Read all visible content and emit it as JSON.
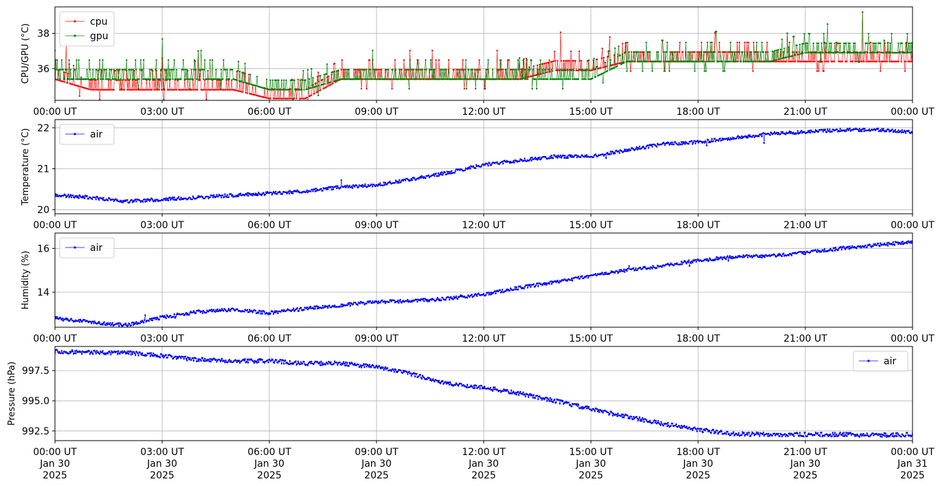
{
  "chart_data": [
    {
      "type": "line",
      "ylabel": "CPU/GPU (°C)",
      "ylim": [
        34.2,
        39.5
      ],
      "yticks": [
        36,
        38
      ],
      "grid": true,
      "legend": "top-left",
      "x_ticks": [
        "00:00 UT",
        "03:00 UT",
        "06:00 UT",
        "09:00 UT",
        "12:00 UT",
        "15:00 UT",
        "18:00 UT",
        "21:00 UT",
        "00:00 UT"
      ],
      "x_range_hours": [
        0,
        24
      ],
      "series": [
        {
          "name": "cpu",
          "color": "#ff0000",
          "points": [
            [
              0,
              35.4
            ],
            [
              1,
              34.8
            ],
            [
              2,
              34.8
            ],
            [
              3,
              34.8
            ],
            [
              4,
              34.8
            ],
            [
              5,
              34.8
            ],
            [
              6,
              34.3
            ],
            [
              7,
              34.3
            ],
            [
              8,
              35.4
            ],
            [
              9,
              35.4
            ],
            [
              10,
              35.4
            ],
            [
              11,
              35.4
            ],
            [
              12,
              35.4
            ],
            [
              13,
              35.4
            ],
            [
              14,
              35.9
            ],
            [
              15,
              35.9
            ],
            [
              16,
              36.4
            ],
            [
              17,
              36.4
            ],
            [
              18,
              36.4
            ],
            [
              19,
              36.4
            ],
            [
              20,
              36.4
            ],
            [
              21,
              36.4
            ],
            [
              22,
              36.4
            ],
            [
              23,
              36.4
            ],
            [
              24,
              36.4
            ]
          ]
        },
        {
          "name": "gpu",
          "color": "#008000",
          "points": [
            [
              0,
              35.4
            ],
            [
              1,
              35.4
            ],
            [
              2,
              35.4
            ],
            [
              3,
              35.4
            ],
            [
              4,
              35.4
            ],
            [
              5,
              35.4
            ],
            [
              6,
              34.8
            ],
            [
              7,
              34.8
            ],
            [
              8,
              35.4
            ],
            [
              9,
              35.4
            ],
            [
              10,
              35.4
            ],
            [
              11,
              35.4
            ],
            [
              12,
              35.4
            ],
            [
              13,
              35.4
            ],
            [
              14,
              35.4
            ],
            [
              15,
              35.4
            ],
            [
              16,
              36.4
            ],
            [
              17,
              36.4
            ],
            [
              18,
              36.4
            ],
            [
              19,
              36.4
            ],
            [
              20,
              36.4
            ],
            [
              21,
              36.9
            ],
            [
              22,
              36.9
            ],
            [
              23,
              36.9
            ],
            [
              24,
              36.9
            ]
          ]
        }
      ],
      "spike_maxima": [
        [
          3,
          36.6
        ],
        [
          4,
          37.0
        ],
        [
          13,
          36.6
        ],
        [
          15.5,
          37.0
        ],
        [
          17,
          37.6
        ],
        [
          18.5,
          38.1
        ],
        [
          20.5,
          38.0
        ],
        [
          22.6,
          39.2
        ],
        [
          23.2,
          37.6
        ]
      ]
    },
    {
      "type": "line",
      "ylabel": "Temperature (°C)",
      "ylim": [
        19.9,
        22.2
      ],
      "yticks": [
        20,
        21,
        22
      ],
      "grid": true,
      "legend": "top-left",
      "x_ticks": [
        "00:00 UT",
        "03:00 UT",
        "06:00 UT",
        "09:00 UT",
        "12:00 UT",
        "15:00 UT",
        "18:00 UT",
        "21:00 UT",
        "00:00 UT"
      ],
      "x_range_hours": [
        0,
        24
      ],
      "series": [
        {
          "name": "air",
          "color": "#0000ff",
          "points": [
            [
              0,
              20.35
            ],
            [
              1,
              20.3
            ],
            [
              2,
              20.2
            ],
            [
              3,
              20.25
            ],
            [
              4,
              20.3
            ],
            [
              5,
              20.35
            ],
            [
              6,
              20.4
            ],
            [
              7,
              20.45
            ],
            [
              8,
              20.55
            ],
            [
              9,
              20.6
            ],
            [
              10,
              20.75
            ],
            [
              11,
              20.9
            ],
            [
              11.5,
              21.0
            ],
            [
              12,
              21.1
            ],
            [
              13,
              21.2
            ],
            [
              14,
              21.3
            ],
            [
              15,
              21.3
            ],
            [
              16,
              21.45
            ],
            [
              17,
              21.6
            ],
            [
              18,
              21.65
            ],
            [
              19,
              21.75
            ],
            [
              20,
              21.85
            ],
            [
              21,
              21.9
            ],
            [
              22,
              21.95
            ],
            [
              23,
              21.95
            ],
            [
              24,
              21.9
            ]
          ]
        }
      ]
    },
    {
      "type": "line",
      "ylabel": "Humidity (%)",
      "ylim": [
        12.4,
        16.7
      ],
      "yticks": [
        14,
        16
      ],
      "grid": true,
      "legend": "top-left",
      "x_ticks": [
        "00:00 UT",
        "03:00 UT",
        "06:00 UT",
        "09:00 UT",
        "12:00 UT",
        "15:00 UT",
        "18:00 UT",
        "21:00 UT",
        "00:00 UT"
      ],
      "x_range_hours": [
        0,
        24
      ],
      "series": [
        {
          "name": "air",
          "color": "#0000ff",
          "points": [
            [
              0,
              12.8
            ],
            [
              1,
              12.65
            ],
            [
              1.5,
              12.55
            ],
            [
              2,
              12.5
            ],
            [
              3,
              12.85
            ],
            [
              4,
              13.1
            ],
            [
              5,
              13.2
            ],
            [
              6,
              13.05
            ],
            [
              7,
              13.25
            ],
            [
              8,
              13.4
            ],
            [
              9,
              13.55
            ],
            [
              10,
              13.6
            ],
            [
              11,
              13.7
            ],
            [
              12,
              13.9
            ],
            [
              13,
              14.2
            ],
            [
              14,
              14.45
            ],
            [
              15,
              14.75
            ],
            [
              16,
              15.0
            ],
            [
              17,
              15.2
            ],
            [
              18,
              15.45
            ],
            [
              19,
              15.6
            ],
            [
              20,
              15.65
            ],
            [
              21,
              15.8
            ],
            [
              22,
              16.0
            ],
            [
              23,
              16.15
            ],
            [
              24,
              16.3
            ]
          ]
        }
      ]
    },
    {
      "type": "line",
      "ylabel": "Pressure (hPa)",
      "ylim": [
        991.7,
        999.5
      ],
      "yticks": [
        992.5,
        995.0,
        997.5
      ],
      "grid": true,
      "legend": "top-right",
      "x_ticks": [
        "00:00 UT\nJan 30\n2025",
        "03:00 UT\nJan 30\n2025",
        "06:00 UT\nJan 30\n2025",
        "09:00 UT\nJan 30\n2025",
        "12:00 UT\nJan 30\n2025",
        "15:00 UT\nJan 30\n2025",
        "18:00 UT\nJan 30\n2025",
        "21:00 UT\nJan 30\n2025",
        "00:00 UT\nJan 31\n2025"
      ],
      "x_range_hours": [
        0,
        24
      ],
      "series": [
        {
          "name": "air",
          "color": "#0000ff",
          "points": [
            [
              0,
              999.1
            ],
            [
              1,
              999.0
            ],
            [
              2,
              999.0
            ],
            [
              3,
              998.7
            ],
            [
              4,
              998.4
            ],
            [
              5,
              998.3
            ],
            [
              6,
              998.3
            ],
            [
              7,
              998.1
            ],
            [
              8,
              998.1
            ],
            [
              9,
              997.8
            ],
            [
              10,
              997.2
            ],
            [
              11,
              996.4
            ],
            [
              12,
              996.1
            ],
            [
              13,
              995.6
            ],
            [
              14,
              995.0
            ],
            [
              15,
              994.3
            ],
            [
              16,
              993.7
            ],
            [
              17,
              993.1
            ],
            [
              18,
              992.6
            ],
            [
              19,
              992.25
            ],
            [
              20,
              992.2
            ],
            [
              21,
              992.2
            ],
            [
              22,
              992.2
            ],
            [
              23,
              992.15
            ],
            [
              24,
              992.2
            ]
          ]
        }
      ]
    }
  ]
}
